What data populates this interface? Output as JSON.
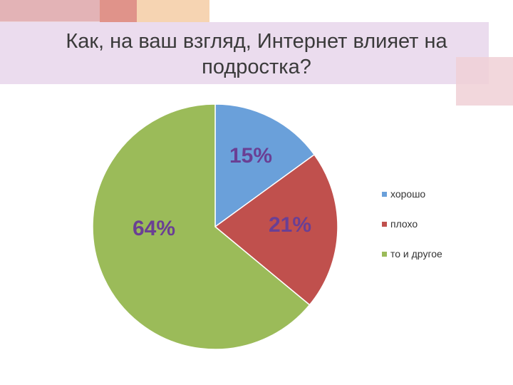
{
  "slide": {
    "title": "Как, на ваш взгляд, Интернет влияет на подростка?"
  },
  "chart_data": {
    "type": "pie",
    "categories": [
      "хорошо",
      "плохо",
      "то и другое"
    ],
    "values": [
      15,
      21,
      64
    ],
    "labels": [
      "15%",
      "21%",
      "64%"
    ],
    "colors": [
      "#6aa0da",
      "#c0504d",
      "#9bbb59"
    ],
    "legend_position": "right"
  }
}
